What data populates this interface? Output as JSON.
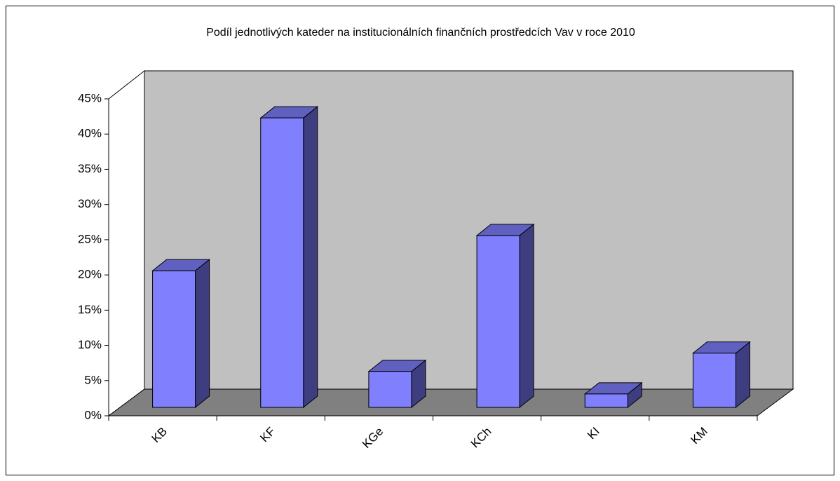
{
  "chart_data": {
    "type": "bar",
    "title": "Podíl jednotlivých kateder na institucionálních finančních prostředcích Vav v roce 2010",
    "categories": [
      "KB",
      "KF",
      "KGe",
      "KCh",
      "KI",
      "KM"
    ],
    "values": [
      19.4,
      41.1,
      5.1,
      24.4,
      1.9,
      7.7
    ],
    "color": "#8080ff",
    "ylim": [
      0,
      45
    ],
    "yticks": [
      {
        "value": 0,
        "label": "0%"
      },
      {
        "value": 5,
        "label": "5%"
      },
      {
        "value": 10,
        "label": "10%"
      },
      {
        "value": 15,
        "label": "15%"
      },
      {
        "value": 20,
        "label": "20%"
      },
      {
        "value": 25,
        "label": "25%"
      },
      {
        "value": 30,
        "label": "30%"
      },
      {
        "value": 35,
        "label": "35%"
      },
      {
        "value": 40,
        "label": "40%"
      },
      {
        "value": 45,
        "label": "45%"
      }
    ]
  }
}
